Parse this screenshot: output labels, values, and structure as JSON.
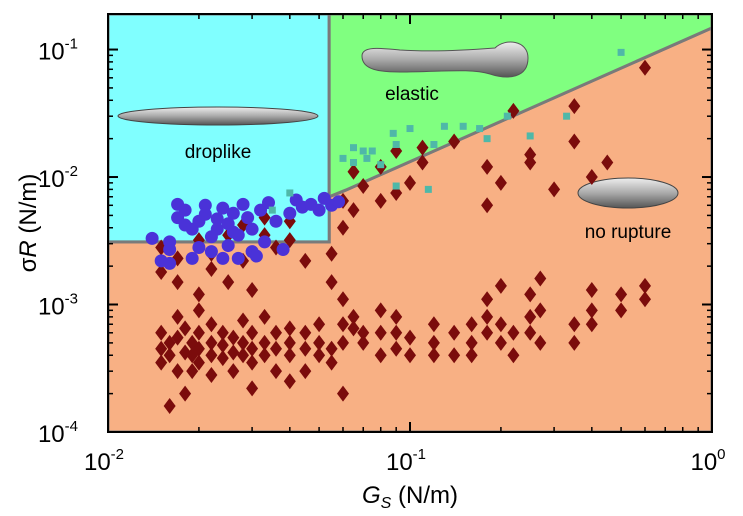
{
  "chart_data": {
    "type": "scatter",
    "x_label": {
      "symbol": "G",
      "subscript": "S",
      "unit": " (N/m)"
    },
    "y_label": {
      "symbol": "σ",
      "italic": "R",
      "unit": " (N/m)"
    },
    "xscale": "log",
    "yscale": "log",
    "xlim": [
      0.01,
      1
    ],
    "ylim": [
      0.0001,
      0.19
    ],
    "xticks": [
      {
        "value": 0.01,
        "label": {
          "base": "10",
          "exp": "-2"
        }
      },
      {
        "value": 0.1,
        "label": {
          "base": "10",
          "exp": "-1"
        }
      },
      {
        "value": 1,
        "label": {
          "base": "10",
          "exp": "0"
        }
      }
    ],
    "yticks": [
      {
        "value": 0.0001,
        "label": {
          "base": "10",
          "exp": "-4"
        }
      },
      {
        "value": 0.001,
        "label": {
          "base": "10",
          "exp": "-3"
        }
      },
      {
        "value": 0.01,
        "label": {
          "base": "10",
          "exp": "-2"
        }
      },
      {
        "value": 0.1,
        "label": {
          "base": "10",
          "exp": "-1"
        }
      }
    ],
    "xminorticks": [
      0.02,
      0.03,
      0.04,
      0.05,
      0.06,
      0.07,
      0.08,
      0.09,
      0.2,
      0.3,
      0.4,
      0.5,
      0.6,
      0.7,
      0.8,
      0.9
    ],
    "yminorticks": [
      0.0002,
      0.0003,
      0.0004,
      0.0005,
      0.0006,
      0.0007,
      0.0008,
      0.0009,
      0.002,
      0.003,
      0.004,
      0.005,
      0.006,
      0.007,
      0.008,
      0.009,
      0.02,
      0.03,
      0.04,
      0.05,
      0.06,
      0.07,
      0.08,
      0.09
    ],
    "regions": [
      {
        "label": "no rupture",
        "color": "#f8b084",
        "x": [
          0.01,
          0.054,
          0.054,
          0.0613,
          1,
          1,
          0.01
        ],
        "y": [
          0.0031,
          0.0031,
          0.007,
          0.0079,
          0.148,
          0.0001,
          0.0001
        ]
      },
      {
        "label": "droplike",
        "color": "#80ffff",
        "x": [
          0.01,
          0.054,
          0.054,
          0.01
        ],
        "y": [
          0.19,
          0.19,
          0.0031,
          0.0031
        ]
      },
      {
        "label": "elastic",
        "color": "#80ff80",
        "x": [
          0.054,
          1,
          1,
          0.0613,
          0.054
        ],
        "y": [
          0.19,
          0.19,
          0.148,
          0.0079,
          0.007
        ]
      }
    ],
    "boundary_color": "#7a7a7a",
    "series": [
      {
        "marker": "diamond",
        "color": "#7b0c0c",
        "x": [
          0.015,
          0.015,
          0.015,
          0.016,
          0.016,
          0.016,
          0.017,
          0.017,
          0.017,
          0.018,
          0.018,
          0.018,
          0.019,
          0.019,
          0.019,
          0.02,
          0.02,
          0.02,
          0.02,
          0.022,
          0.022,
          0.022,
          0.022,
          0.024,
          0.024,
          0.024,
          0.026,
          0.026,
          0.026,
          0.028,
          0.028,
          0.028,
          0.03,
          0.03,
          0.03,
          0.03,
          0.033,
          0.033,
          0.033,
          0.036,
          0.036,
          0.036,
          0.04,
          0.04,
          0.04,
          0.04,
          0.045,
          0.045,
          0.045,
          0.05,
          0.05,
          0.05,
          0.055,
          0.055,
          0.06,
          0.06,
          0.06,
          0.065,
          0.065,
          0.07,
          0.07,
          0.08,
          0.08,
          0.08,
          0.09,
          0.09,
          0.09,
          0.1,
          0.1,
          0.12,
          0.12,
          0.12,
          0.14,
          0.14,
          0.16,
          0.16,
          0.16,
          0.18,
          0.18,
          0.18,
          0.2,
          0.2,
          0.2,
          0.22,
          0.22,
          0.25,
          0.25,
          0.25,
          0.27,
          0.27,
          0.27,
          0.35,
          0.35,
          0.4,
          0.4,
          0.4,
          0.5,
          0.5,
          0.6,
          0.6,
          0.015,
          0.015,
          0.017,
          0.017,
          0.02,
          0.02,
          0.022,
          0.022,
          0.025,
          0.025,
          0.028,
          0.028,
          0.03,
          0.033,
          0.033,
          0.036,
          0.04,
          0.04,
          0.045,
          0.055,
          0.055,
          0.06,
          0.06,
          0.06,
          0.065,
          0.065,
          0.07,
          0.08,
          0.08,
          0.09,
          0.09,
          0.1,
          0.11,
          0.11,
          0.14,
          0.18,
          0.18,
          0.2,
          0.22,
          0.25,
          0.25,
          0.3,
          0.35,
          0.35,
          0.4,
          0.45,
          0.6
        ],
        "values": [
          0.00035,
          0.00045,
          0.0006,
          0.00016,
          0.0004,
          0.0005,
          0.0003,
          0.00055,
          0.0008,
          0.00042,
          0.0002,
          0.00065,
          0.0004,
          0.0005,
          0.0003,
          0.00035,
          0.00045,
          0.0006,
          0.0009,
          0.0004,
          0.0005,
          0.00028,
          0.0007,
          0.00038,
          0.00048,
          0.0006,
          0.00042,
          0.00055,
          0.0003,
          0.0004,
          0.0005,
          0.00075,
          0.00035,
          0.00045,
          0.0006,
          0.00022,
          0.0004,
          0.0005,
          0.0008,
          0.00045,
          0.0003,
          0.0006,
          0.0004,
          0.0005,
          0.00065,
          0.00025,
          0.00045,
          0.0006,
          0.0003,
          0.0004,
          0.0005,
          0.0007,
          0.00035,
          0.00045,
          0.0005,
          0.0007,
          0.0002,
          0.00065,
          0.0008,
          0.0006,
          0.0005,
          0.0004,
          0.0006,
          0.0009,
          0.00045,
          0.0006,
          0.0008,
          0.0004,
          0.00055,
          0.0005,
          0.0004,
          0.0007,
          0.0004,
          0.0006,
          0.0005,
          0.0007,
          0.0004,
          0.0006,
          0.0008,
          0.0011,
          0.0005,
          0.0007,
          0.0014,
          0.0004,
          0.0006,
          0.0006,
          0.0008,
          0.0012,
          0.0005,
          0.0009,
          0.0016,
          0.0007,
          0.0005,
          0.0007,
          0.0009,
          0.0013,
          0.0009,
          0.0012,
          0.0011,
          0.0014,
          0.0028,
          0.0018,
          0.0023,
          0.0015,
          0.0032,
          0.0012,
          0.0025,
          0.0019,
          0.0015,
          0.0035,
          0.0042,
          0.0022,
          0.0013,
          0.0035,
          0.0048,
          0.0028,
          0.0032,
          0.0045,
          0.0022,
          0.0015,
          0.0025,
          0.0011,
          0.0065,
          0.004,
          0.0055,
          0.011,
          0.0085,
          0.012,
          0.0065,
          0.0075,
          0.016,
          0.009,
          0.013,
          0.017,
          0.019,
          0.012,
          0.006,
          0.009,
          0.033,
          0.015,
          0.013,
          0.008,
          0.019,
          0.036,
          0.01,
          0.013,
          0.072
        ]
      },
      {
        "marker": "circle",
        "color": "#4a32d8",
        "x": [
          0.014,
          0.015,
          0.016,
          0.016,
          0.017,
          0.017,
          0.018,
          0.018,
          0.019,
          0.02,
          0.02,
          0.021,
          0.021,
          0.022,
          0.022,
          0.023,
          0.023,
          0.024,
          0.024,
          0.025,
          0.025,
          0.026,
          0.027,
          0.027,
          0.028,
          0.029,
          0.03,
          0.03,
          0.031,
          0.032,
          0.033,
          0.034,
          0.036,
          0.038,
          0.04,
          0.042,
          0.044,
          0.047,
          0.05,
          0.052,
          0.055,
          0.058,
          0.016,
          0.019,
          0.026
        ],
        "values": [
          0.0033,
          0.0022,
          0.0021,
          0.0027,
          0.0061,
          0.0048,
          0.0042,
          0.0055,
          0.0039,
          0.0045,
          0.0028,
          0.006,
          0.0051,
          0.0026,
          0.0034,
          0.0047,
          0.0039,
          0.0057,
          0.0023,
          0.0043,
          0.0029,
          0.0052,
          0.0035,
          0.0023,
          0.0061,
          0.0048,
          0.0026,
          0.0039,
          0.0024,
          0.0055,
          0.0031,
          0.0063,
          0.0045,
          0.0027,
          0.0052,
          0.0066,
          0.0058,
          0.0061,
          0.0055,
          0.0068,
          0.006,
          0.0064,
          0.0031,
          0.0023,
          0.0037
        ]
      },
      {
        "marker": "square",
        "color": "#4fb8a8",
        "x": [
          0.035,
          0.04,
          0.06,
          0.065,
          0.07,
          0.072,
          0.075,
          0.08,
          0.088,
          0.09,
          0.1,
          0.115,
          0.12,
          0.13,
          0.15,
          0.17,
          0.18,
          0.21,
          0.25,
          0.33,
          0.5,
          0.09,
          0.065
        ],
        "values": [
          0.0055,
          0.0075,
          0.014,
          0.017,
          0.016,
          0.014,
          0.016,
          0.0125,
          0.022,
          0.018,
          0.024,
          0.008,
          0.018,
          0.025,
          0.025,
          0.024,
          0.02,
          0.03,
          0.021,
          0.03,
          0.095,
          0.0085,
          0.013
        ]
      }
    ]
  }
}
